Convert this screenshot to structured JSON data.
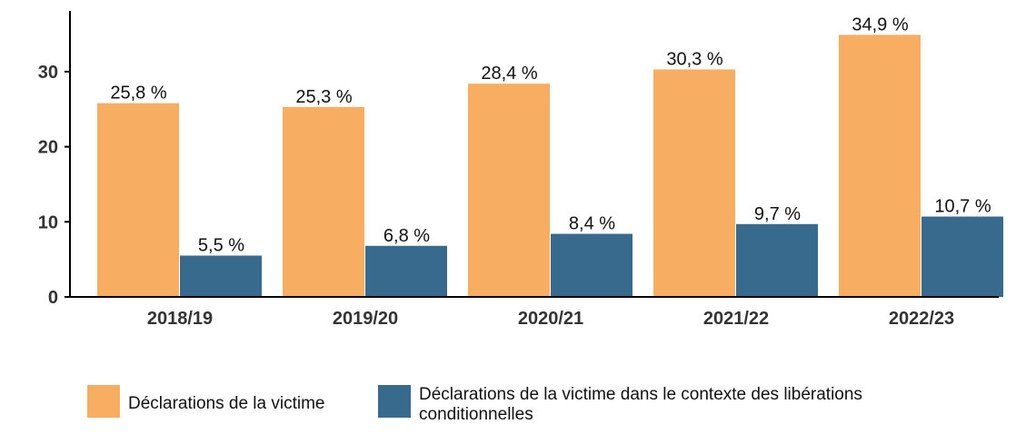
{
  "chart_data": {
    "type": "bar",
    "categories": [
      "2018/19",
      "2019/20",
      "2020/21",
      "2021/22",
      "2022/23"
    ],
    "series": [
      {
        "name": "Déclarations de la victime",
        "color": "#F7AE62",
        "values": [
          25.8,
          25.3,
          28.4,
          30.3,
          34.9
        ],
        "labels": [
          "25,8 %",
          "25,3 %",
          "28,4 %",
          "30,3 %",
          "34,9 %"
        ]
      },
      {
        "name": "Déclarations de la victime dans le contexte des libérations conditionnelles",
        "color": "#376A8C",
        "values": [
          5.5,
          6.8,
          8.4,
          9.7,
          10.7
        ],
        "labels": [
          "5,5 %",
          "6,8 %",
          "8,4 %",
          "9,7 %",
          "10,7 %"
        ]
      }
    ],
    "y_ticks": [
      0,
      10,
      20,
      30
    ],
    "ylim": [
      0,
      38
    ],
    "grid": false,
    "legend_position": "bottom"
  }
}
